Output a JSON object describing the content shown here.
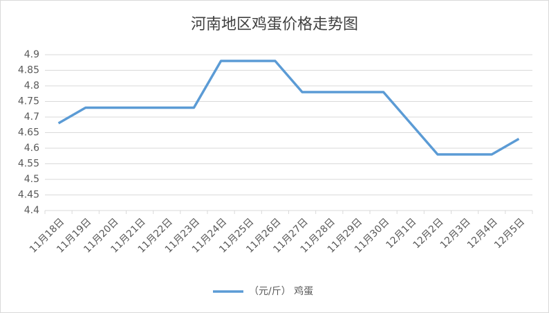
{
  "chart_data": {
    "type": "line",
    "title": "河南地区鸡蛋价格走势图",
    "categories": [
      "11月18日",
      "11月19日",
      "11月20日",
      "11月21日",
      "11月22日",
      "11月23日",
      "11月24日",
      "11月25日",
      "11月26日",
      "11月27日",
      "11月28日",
      "11月29日",
      "11月30日",
      "12月1日",
      "12月2日",
      "12月3日",
      "12月4日",
      "12月5日"
    ],
    "series": [
      {
        "name": "（元/斤） 鸡蛋",
        "color": "#5b9bd5",
        "values": [
          4.68,
          4.73,
          4.73,
          4.73,
          4.73,
          4.73,
          4.88,
          4.88,
          4.88,
          4.78,
          4.78,
          4.78,
          4.78,
          4.68,
          4.58,
          4.58,
          4.58,
          4.63
        ]
      }
    ],
    "ylim": [
      4.4,
      4.9
    ],
    "yticks": [
      4.4,
      4.45,
      4.5,
      4.55,
      4.6,
      4.65,
      4.7,
      4.75,
      4.8,
      4.85,
      4.9
    ],
    "grid": true,
    "legend": "bottom"
  }
}
